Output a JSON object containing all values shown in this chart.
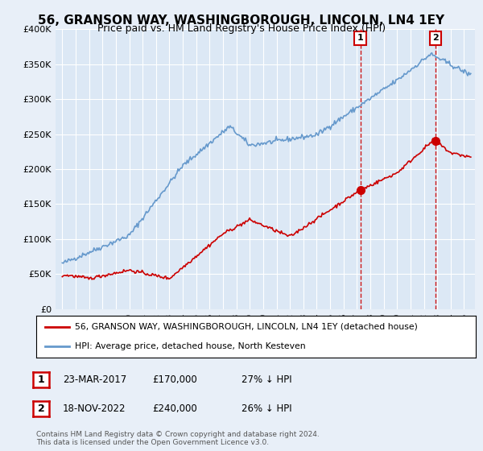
{
  "title": "56, GRANSON WAY, WASHINGBOROUGH, LINCOLN, LN4 1EY",
  "subtitle": "Price paid vs. HM Land Registry's House Price Index (HPI)",
  "ylim": [
    0,
    400000
  ],
  "yticks": [
    0,
    50000,
    100000,
    150000,
    200000,
    250000,
    300000,
    350000,
    400000
  ],
  "ytick_labels": [
    "£0",
    "£50K",
    "£100K",
    "£150K",
    "£200K",
    "£250K",
    "£300K",
    "£350K",
    "£400K"
  ],
  "bg_color": "#e8eff8",
  "plot_bg_color": "#dce8f5",
  "marker1_x": 2017.25,
  "marker2_x": 2022.88,
  "marker1_value": 170000,
  "marker2_value": 240000,
  "legend_entry1": "56, GRANSON WAY, WASHINGBOROUGH, LINCOLN, LN4 1EY (detached house)",
  "legend_entry2": "HPI: Average price, detached house, North Kesteven",
  "annot1_date": "23-MAR-2017",
  "annot1_price": "£170,000",
  "annot1_hpi": "27% ↓ HPI",
  "annot2_date": "18-NOV-2022",
  "annot2_price": "£240,000",
  "annot2_hpi": "26% ↓ HPI",
  "footnote": "Contains HM Land Registry data © Crown copyright and database right 2024.\nThis data is licensed under the Open Government Licence v3.0.",
  "red_line_color": "#cc0000",
  "blue_line_color": "#6699cc",
  "dashed_red_color": "#cc0000"
}
